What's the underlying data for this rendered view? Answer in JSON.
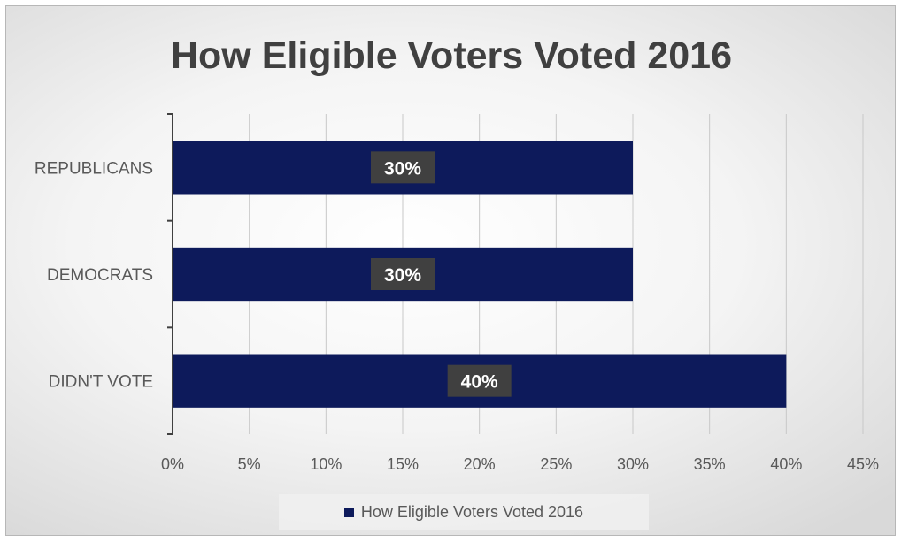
{
  "chart_data": {
    "type": "bar",
    "orientation": "horizontal",
    "title": "How Eligible Voters Voted 2016",
    "categories": [
      "REPUBLICANS",
      "DEMOCRATS",
      "DIDN'T VOTE"
    ],
    "series": [
      {
        "name": "How Eligible Voters Voted 2016",
        "values": [
          0.3,
          0.3,
          0.4
        ],
        "data_labels": [
          "30%",
          "30%",
          "40%"
        ],
        "color": "#0d1a5b"
      }
    ],
    "xlim": [
      0,
      0.45
    ],
    "x_ticks": [
      0,
      0.05,
      0.1,
      0.15,
      0.2,
      0.25,
      0.3,
      0.35,
      0.4,
      0.45
    ],
    "x_tick_labels": [
      "0%",
      "5%",
      "10%",
      "15%",
      "20%",
      "25%",
      "30%",
      "35%",
      "40%",
      "45%"
    ],
    "xlabel": "",
    "ylabel": "",
    "grid": "vertical",
    "legend_position": "bottom",
    "colors": {
      "bar": "#0d1a5b",
      "data_label_bg": "#404040",
      "gridline": "#c8c8c8",
      "axis": "#404040",
      "text": "#595959",
      "title": "#404040"
    }
  }
}
